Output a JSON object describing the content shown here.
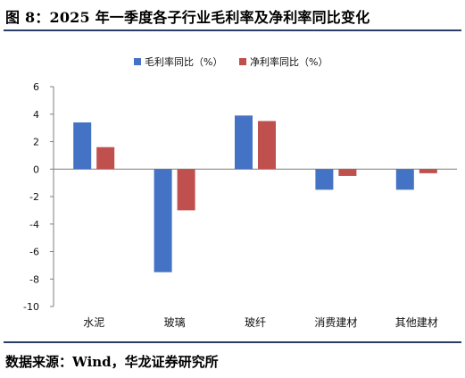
{
  "figure": {
    "title": "图 8：2025 年一季度各子行业毛利率及净利率同比变化",
    "source": "数据来源：Wind，华龙证券研究所"
  },
  "chart_data": {
    "type": "bar",
    "title": "",
    "xlabel": "",
    "ylabel": "",
    "categories": [
      "水泥",
      "玻璃",
      "玻纤",
      "消费建材",
      "其他建材"
    ],
    "series": [
      {
        "name": "毛利率同比（%）",
        "color": "#4472c4",
        "values": [
          3.4,
          -7.5,
          3.9,
          -1.5,
          -1.5
        ]
      },
      {
        "name": "净利率同比（%）",
        "color": "#c0504d",
        "values": [
          1.6,
          -3.0,
          3.5,
          -0.5,
          -0.3
        ]
      }
    ],
    "ylim": [
      -10,
      6
    ],
    "yticks": [
      6,
      4,
      2,
      0,
      -2,
      -4,
      -6,
      -8,
      -10
    ],
    "grid": false,
    "legend_position": "top-center"
  }
}
